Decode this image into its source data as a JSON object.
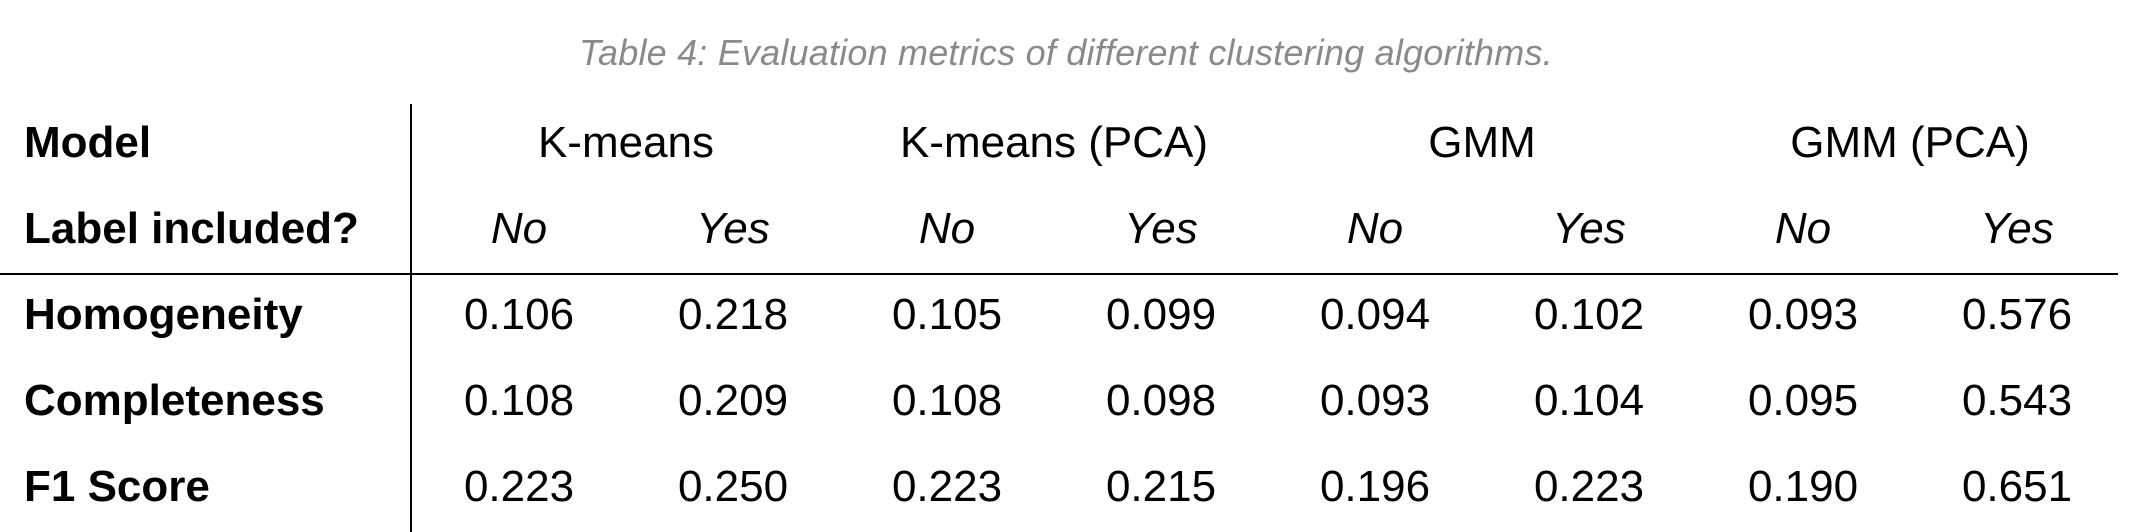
{
  "caption": "Table 4: Evaluation metrics of different clustering algorithms.",
  "header": {
    "model_label": "Model",
    "label_included_label": "Label included?",
    "models": [
      "K-means",
      "K-means (PCA)",
      "GMM",
      "GMM (PCA)"
    ],
    "label_options": [
      "No",
      "Yes",
      "No",
      "Yes",
      "No",
      "Yes",
      "No",
      "Yes"
    ]
  },
  "rows": [
    {
      "metric": "Homogeneity",
      "values": [
        "0.106",
        "0.218",
        "0.105",
        "0.099",
        "0.094",
        "0.102",
        "0.093",
        "0.576"
      ]
    },
    {
      "metric": "Completeness",
      "values": [
        "0.108",
        "0.209",
        "0.108",
        "0.098",
        "0.093",
        "0.104",
        "0.095",
        "0.543"
      ]
    },
    {
      "metric": "F1 Score",
      "values": [
        "0.223",
        "0.250",
        "0.223",
        "0.215",
        "0.196",
        "0.223",
        "0.190",
        "0.651"
      ]
    }
  ]
}
